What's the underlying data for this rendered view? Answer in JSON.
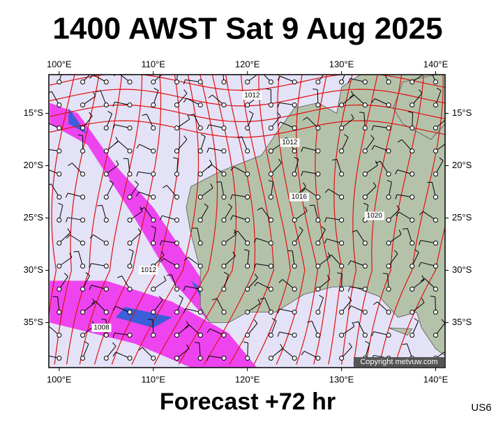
{
  "map": {
    "title": "1400 AWST Sat 9 Aug 2025",
    "subtitle": "Forecast +72 hr",
    "code": "US6",
    "copyright": "Copyright metvuw.com",
    "xlim": [
      98.9,
      141
    ],
    "ylim": [
      -39.3,
      -11.3
    ],
    "xticks": [
      {
        "value": 100,
        "label": "100°E"
      },
      {
        "value": 110,
        "label": "110°E"
      },
      {
        "value": 120,
        "label": "120°E"
      },
      {
        "value": 130,
        "label": "130°E"
      },
      {
        "value": 140,
        "label": "140°E"
      }
    ],
    "yticks": [
      {
        "value": -15,
        "label": "15°S"
      },
      {
        "value": -20,
        "label": "20°S"
      },
      {
        "value": -25,
        "label": "25°S"
      },
      {
        "value": -30,
        "label": "30°S"
      },
      {
        "value": -35,
        "label": "35°S"
      }
    ],
    "contour_labels": [
      "1012",
      "1012",
      "1016",
      "1020",
      "1012",
      "1008"
    ]
  }
}
